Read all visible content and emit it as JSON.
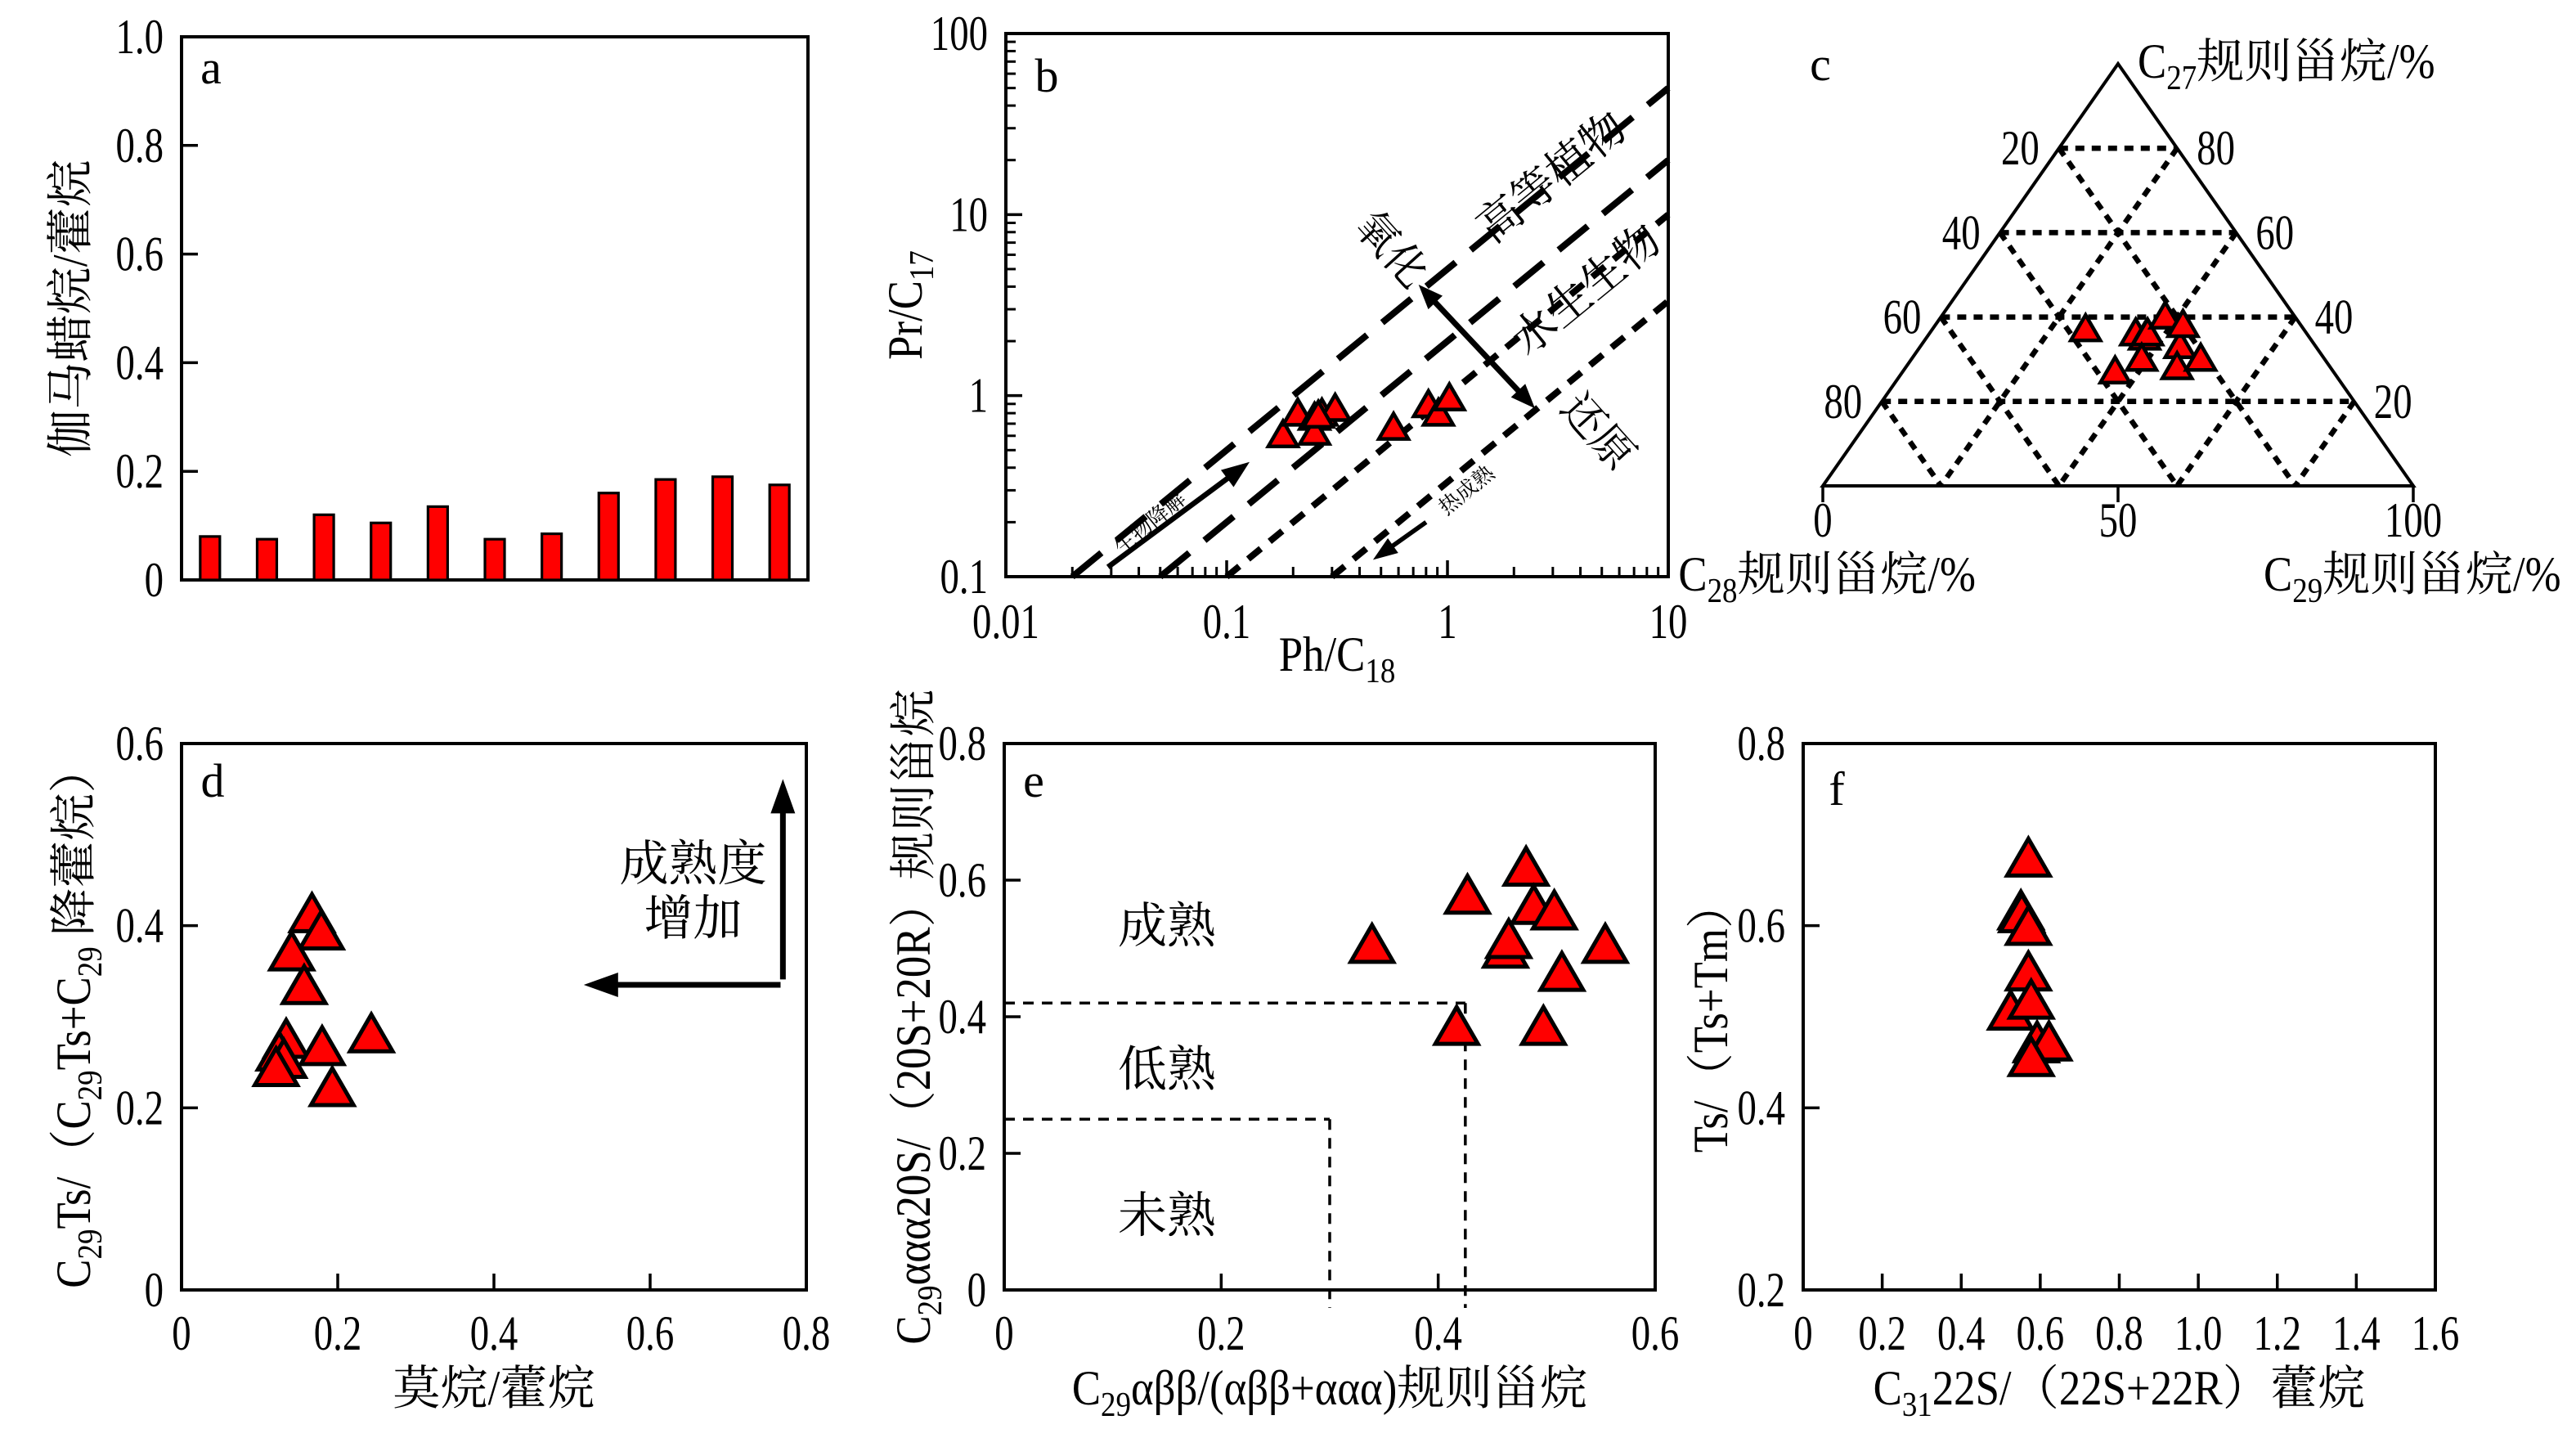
{
  "figure": {
    "background": "#ffffff",
    "marker_color": "#ff0000",
    "marker_outline": "#000000",
    "marker_shape": "triangle-up",
    "font_color": "#000000"
  },
  "chart_data": [
    {
      "id": "a",
      "type": "bar",
      "panel_label": "a",
      "xlabel": "",
      "ylabel": "伽马蜡烷/藿烷",
      "ylim": [
        0,
        1.0
      ],
      "yticks": [
        0.2,
        0.4,
        0.6,
        0.8
      ],
      "ytick_labels": [
        [
          "0",
          0
        ],
        [
          "0.2",
          0.2
        ],
        [
          "0.4",
          0.4
        ],
        [
          "0.6",
          0.6
        ],
        [
          "0.8",
          0.8
        ],
        [
          "1.0",
          1.0
        ]
      ],
      "values": [
        0.08,
        0.075,
        0.12,
        0.105,
        0.135,
        0.075,
        0.085,
        0.16,
        0.185,
        0.19,
        0.175
      ],
      "bar_color": "#ff0000",
      "grid": false
    },
    {
      "id": "b",
      "type": "scatter",
      "panel_label": "b",
      "xlabel": "Ph/C_{18}",
      "ylabel": "Pr/C_{17}",
      "xscale": "log",
      "yscale": "log",
      "xlim": [
        0.01,
        10
      ],
      "ylim": [
        0.1,
        100
      ],
      "xtick_labels": [
        [
          "0.01",
          0.01
        ],
        [
          "0.1",
          0.1
        ],
        [
          "1",
          1
        ],
        [
          "10",
          10
        ]
      ],
      "ytick_labels": [
        [
          "0.1",
          0.1
        ],
        [
          "1",
          1
        ],
        [
          "10",
          10
        ],
        [
          "100",
          100
        ]
      ],
      "points": [
        [
          0.18,
          0.6
        ],
        [
          0.21,
          0.79
        ],
        [
          0.25,
          0.75
        ],
        [
          0.27,
          0.79
        ],
        [
          0.31,
          0.84
        ],
        [
          0.25,
          0.62
        ],
        [
          0.26,
          0.77
        ],
        [
          0.57,
          0.66
        ],
        [
          0.82,
          0.88
        ],
        [
          0.91,
          0.79
        ],
        [
          1.02,
          0.96
        ]
      ],
      "guide_lines": [
        {
          "ratio": 5,
          "x_start": 0.02,
          "dash": "long"
        },
        {
          "ratio": 2,
          "x_start": 0.05,
          "dash": "long"
        },
        {
          "ratio": 1,
          "x_start": 0.1,
          "dash": "short"
        },
        {
          "ratio": 0.333,
          "x_start": 0.3,
          "dash": "short"
        }
      ],
      "annotations": [
        {
          "text": "高等植物",
          "x": 3.27,
          "y": 13.9,
          "rotate": -39.3,
          "size": 54
        },
        {
          "text": "水生生物",
          "x": 4.68,
          "y": 3.33,
          "rotate": -39.3,
          "size": 54
        },
        {
          "text": "生物降解",
          "x": 0.047,
          "y": 0.185,
          "rotate": -39.3,
          "size": 26
        },
        {
          "text": "热成熟",
          "x": 1.28,
          "y": 0.28,
          "rotate": -39.3,
          "size": 26
        },
        {
          "text": "氧化",
          "x": 0.5,
          "y": 5.7,
          "rotate": 48,
          "size": 52
        },
        {
          "text": "还原",
          "x": 4.3,
          "y": 0.56,
          "rotate": 48,
          "size": 52
        }
      ],
      "arrows": [
        {
          "x1": 0.029,
          "y1": 0.113,
          "x2": 0.127,
          "y2": 0.43,
          "double": false,
          "sw": 6.5,
          "hl": 34,
          "hw": 26
        },
        {
          "x1": 0.8,
          "y1": 0.2,
          "x2": 0.46,
          "y2": 0.124,
          "double": false,
          "sw": 5.5,
          "hl": 30,
          "hw": 22
        },
        {
          "x1": 0.74,
          "y1": 4.1,
          "x2": 2.49,
          "y2": 0.85,
          "double": true,
          "sw": 7,
          "hl": 30,
          "hw": 24
        }
      ]
    },
    {
      "id": "c",
      "type": "scatter",
      "subtype": "ternary",
      "panel_label": "c",
      "point_format": [
        "C27_percent",
        "C28_percent",
        "C29_percent"
      ],
      "axis_top": "C_{27}规则甾烷/%",
      "axis_left": "C_{28}规则甾烷/%",
      "axis_right": "C_{29}规则甾烷/%",
      "left_tick_labels": [
        [
          "20",
          20
        ],
        [
          "40",
          40
        ],
        [
          "60",
          60
        ],
        [
          "80",
          80
        ]
      ],
      "right_tick_labels": [
        [
          "80",
          80
        ],
        [
          "60",
          60
        ],
        [
          "40",
          40
        ],
        [
          "20",
          20
        ]
      ],
      "bottom_tick_labels": [
        [
          "0",
          0
        ],
        [
          "50",
          50
        ],
        [
          "100",
          100
        ]
      ],
      "grid_interval": 20,
      "points": [
        [
          37,
          37,
          26
        ],
        [
          27,
          37,
          36
        ],
        [
          36,
          29,
          35
        ],
        [
          35,
          28,
          37
        ],
        [
          36,
          27,
          37
        ],
        [
          30,
          31,
          39
        ],
        [
          40,
          22,
          38
        ],
        [
          33,
          23,
          44
        ],
        [
          38,
          20,
          42
        ],
        [
          28,
          26,
          46
        ],
        [
          30,
          21,
          49
        ]
      ]
    },
    {
      "id": "d",
      "type": "scatter",
      "panel_label": "d",
      "xlabel": "莫烷/藿烷",
      "ylabel": "C_{29}Ts/（C_{29}Ts+C_{29} 降藿烷）",
      "xlim": [
        0,
        0.8
      ],
      "ylim": [
        0,
        0.6
      ],
      "xticks": [
        0.2,
        0.4,
        0.6
      ],
      "yticks": [
        0.2,
        0.4
      ],
      "xtick_labels": [
        [
          "0",
          0
        ],
        [
          "0.2",
          0.2
        ],
        [
          "0.4",
          0.4
        ],
        [
          "0.6",
          0.6
        ],
        [
          "0.8",
          0.8
        ]
      ],
      "ytick_labels": [
        [
          "0",
          0
        ],
        [
          "0.2",
          0.2
        ],
        [
          "0.4",
          0.4
        ],
        [
          "0.6",
          0.6
        ]
      ],
      "points": [
        [
          0.167,
          0.411
        ],
        [
          0.179,
          0.392
        ],
        [
          0.141,
          0.369
        ],
        [
          0.157,
          0.332
        ],
        [
          0.134,
          0.273
        ],
        [
          0.125,
          0.259
        ],
        [
          0.131,
          0.251
        ],
        [
          0.121,
          0.242
        ],
        [
          0.18,
          0.265
        ],
        [
          0.243,
          0.279
        ],
        [
          0.193,
          0.22
        ]
      ],
      "annotations": [
        {
          "text": "成熟度",
          "x": 0.655,
          "y": 0.468,
          "rotate": 0,
          "size": 60
        },
        {
          "text": "增加",
          "x": 0.655,
          "y": 0.408,
          "rotate": 0,
          "size": 60
        }
      ],
      "arrows": [
        {
          "x1": 0.77,
          "y1": 0.341,
          "x2": 0.77,
          "y2": 0.561,
          "double": false
        },
        {
          "x1": 0.767,
          "y1": 0.335,
          "x2": 0.515,
          "y2": 0.335,
          "double": false
        }
      ]
    },
    {
      "id": "e",
      "type": "scatter",
      "panel_label": "e",
      "xlabel": "C_{29}αββ/(αββ+ααα)规则甾烷",
      "ylabel": "C_{29}ααα20S/（20S+20R）规则甾烷",
      "xlim": [
        0,
        0.6
      ],
      "ylim": [
        0,
        0.8
      ],
      "xticks": [
        0.2,
        0.4
      ],
      "yticks": [
        0.2,
        0.4,
        0.6
      ],
      "xtick_labels": [
        [
          "0",
          0
        ],
        [
          "0.2",
          0.2
        ],
        [
          "0.4",
          0.4
        ],
        [
          "0.6",
          0.6
        ]
      ],
      "ytick_labels": [
        [
          "0",
          0
        ],
        [
          "0.2",
          0.2
        ],
        [
          "0.4",
          0.4
        ],
        [
          "0.6",
          0.6
        ],
        [
          "0.8",
          0.8
        ]
      ],
      "points": [
        [
          0.339,
          0.503
        ],
        [
          0.427,
          0.575
        ],
        [
          0.462,
          0.496
        ],
        [
          0.465,
          0.51
        ],
        [
          0.481,
          0.616
        ],
        [
          0.488,
          0.56
        ],
        [
          0.507,
          0.552
        ],
        [
          0.514,
          0.462
        ],
        [
          0.497,
          0.383
        ],
        [
          0.554,
          0.503
        ],
        [
          0.417,
          0.383
        ]
      ],
      "maturity_lines": [
        {
          "y": 0.42,
          "x_end": 0.425
        },
        {
          "x": 0.425,
          "y_end": 0.42
        },
        {
          "y": 0.25,
          "x_end": 0.3
        },
        {
          "x": 0.3,
          "y_end": 0.25
        }
      ],
      "annotations": [
        {
          "text": "成熟",
          "x": 0.15,
          "y": 0.533,
          "rotate": 0,
          "size": 60
        },
        {
          "text": "低熟",
          "x": 0.15,
          "y": 0.323,
          "rotate": 0,
          "size": 60
        },
        {
          "text": "未熟",
          "x": 0.15,
          "y": 0.109,
          "rotate": 0,
          "size": 60
        }
      ]
    },
    {
      "id": "f",
      "type": "scatter",
      "panel_label": "f",
      "xlabel": "C_{31}22S/（22S+22R）藿烷",
      "ylabel": "Ts/（Ts+Tm）",
      "xlim": [
        0,
        1.6
      ],
      "ylim": [
        0.2,
        0.8
      ],
      "xticks": [
        0.2,
        0.4,
        0.6,
        0.8,
        1.0,
        1.2,
        1.4
      ],
      "yticks": [
        0.4,
        0.6
      ],
      "xtick_labels": [
        [
          "0",
          0
        ],
        [
          "0.2",
          0.2
        ],
        [
          "0.4",
          0.4
        ],
        [
          "0.6",
          0.6
        ],
        [
          "0.8",
          0.8
        ],
        [
          "1.0",
          1.0
        ],
        [
          "1.2",
          1.2
        ],
        [
          "1.4",
          1.4
        ],
        [
          "1.6",
          1.6
        ]
      ],
      "ytick_labels": [
        [
          "0.2",
          0.2
        ],
        [
          "0.4",
          0.4
        ],
        [
          "0.6",
          0.6
        ],
        [
          "0.8",
          0.8
        ]
      ],
      "points": [
        [
          0.57,
          0.672
        ],
        [
          0.551,
          0.614
        ],
        [
          0.553,
          0.611
        ],
        [
          0.57,
          0.597
        ],
        [
          0.57,
          0.547
        ],
        [
          0.525,
          0.504
        ],
        [
          0.577,
          0.516
        ],
        [
          0.59,
          0.468
        ],
        [
          0.592,
          0.47
        ],
        [
          0.622,
          0.47
        ],
        [
          0.577,
          0.453
        ]
      ]
    }
  ]
}
